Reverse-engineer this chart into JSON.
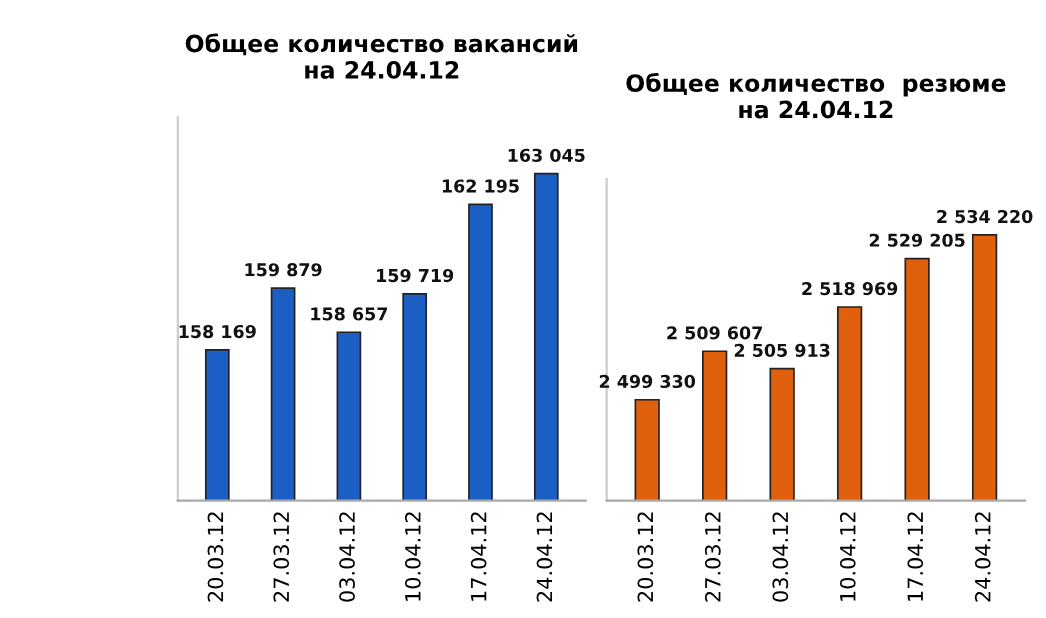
{
  "chart_data": [
    {
      "type": "bar",
      "title": "Общее количество вакансий\nна 24.04.12",
      "categories": [
        "20.03.12",
        "27.03.12",
        "03.04.12",
        "10.04.12",
        "17.04.12",
        "24.04.12"
      ],
      "values": [
        158169,
        159879,
        158657,
        159719,
        162195,
        163045
      ],
      "value_labels": [
        "158 169",
        "159 879",
        "158 657",
        "159 719",
        "162 195",
        "163 045"
      ],
      "color": "#1c5fc4",
      "ylim": [
        154000,
        164600
      ],
      "tick_labels": "x",
      "grid": false,
      "legend": false
    },
    {
      "type": "bar",
      "title": "Общее количество  резюме\nна 24.04.12",
      "categories": [
        "20.03.12",
        "27.03.12",
        "03.04.12",
        "10.04.12",
        "17.04.12",
        "24.04.12"
      ],
      "values": [
        2499330,
        2509607,
        2505913,
        2518969,
        2529205,
        2534220
      ],
      "value_labels": [
        "2 499 330",
        "2 509 607",
        "2 505 913",
        "2 518 969",
        "2 529 205",
        "2 534 220"
      ],
      "color": "#e0600e",
      "ylim": [
        2478000,
        2546000
      ],
      "tick_labels": "x",
      "grid": false,
      "legend": false
    }
  ]
}
